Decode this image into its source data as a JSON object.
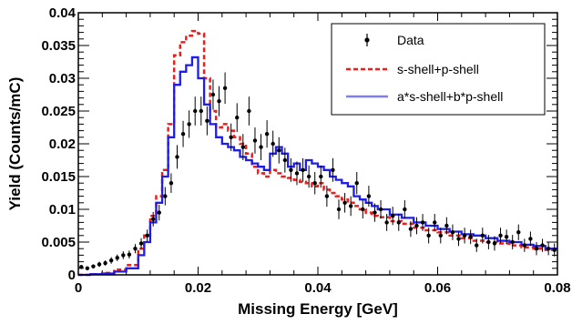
{
  "chart_data": {
    "type": "line",
    "xlabel": "Missing Energy [GeV]",
    "ylabel": "Yield (Counts/mC)",
    "xlim": [
      0,
      0.08
    ],
    "ylim": [
      0,
      0.04
    ],
    "x_ticks": [
      {
        "value": 0,
        "label": "0"
      },
      {
        "value": 0.02,
        "label": "0.02"
      },
      {
        "value": 0.04,
        "label": "0.04"
      },
      {
        "value": 0.06,
        "label": "0.06"
      },
      {
        "value": 0.08,
        "label": "0.08"
      }
    ],
    "y_ticks": [
      {
        "value": 0,
        "label": "0"
      },
      {
        "value": 0.005,
        "label": "0.005"
      },
      {
        "value": 0.01,
        "label": "0.01"
      },
      {
        "value": 0.015,
        "label": "0.015"
      },
      {
        "value": 0.02,
        "label": "0.02"
      },
      {
        "value": 0.025,
        "label": "0.025"
      },
      {
        "value": 0.03,
        "label": "0.03"
      },
      {
        "value": 0.035,
        "label": "0.035"
      },
      {
        "value": 0.04,
        "label": "0.04"
      }
    ],
    "legend_position": "top-right",
    "grid": false,
    "series": [
      {
        "name": "Data",
        "style": "points-with-errorbars",
        "color": "#000000",
        "x": [
          0.0005,
          0.0015,
          0.0025,
          0.0035,
          0.0045,
          0.0055,
          0.0065,
          0.0075,
          0.0085,
          0.0095,
          0.0105,
          0.0115,
          0.0125,
          0.0135,
          0.0145,
          0.0155,
          0.0165,
          0.0175,
          0.0185,
          0.0195,
          0.0205,
          0.0215,
          0.0225,
          0.0235,
          0.0245,
          0.0255,
          0.0265,
          0.0275,
          0.0285,
          0.0295,
          0.0305,
          0.0315,
          0.0325,
          0.0335,
          0.0345,
          0.0355,
          0.0365,
          0.0375,
          0.0385,
          0.0395,
          0.0405,
          0.0415,
          0.0425,
          0.0435,
          0.0445,
          0.0455,
          0.0465,
          0.0475,
          0.0485,
          0.0495,
          0.0505,
          0.0515,
          0.0525,
          0.0535,
          0.0545,
          0.0555,
          0.0565,
          0.0575,
          0.0585,
          0.0595,
          0.0605,
          0.0615,
          0.0625,
          0.0635,
          0.0645,
          0.0655,
          0.0665,
          0.0675,
          0.0685,
          0.0695,
          0.0705,
          0.0715,
          0.0725,
          0.0735,
          0.0745,
          0.0755,
          0.0765,
          0.0775,
          0.0785,
          0.0795
        ],
        "y": [
          0.0012,
          0.001,
          0.0013,
          0.0016,
          0.0018,
          0.0022,
          0.0026,
          0.003,
          0.0031,
          0.004,
          0.0048,
          0.006,
          0.0085,
          0.0095,
          0.012,
          0.014,
          0.018,
          0.0215,
          0.023,
          0.025,
          0.025,
          0.0235,
          0.0275,
          0.0265,
          0.0285,
          0.021,
          0.024,
          0.0195,
          0.025,
          0.0205,
          0.0195,
          0.0215,
          0.02,
          0.019,
          0.0175,
          0.016,
          0.0155,
          0.016,
          0.015,
          0.014,
          0.015,
          0.012,
          0.016,
          0.01,
          0.011,
          0.0105,
          0.014,
          0.01,
          0.012,
          0.0095,
          0.01,
          0.008,
          0.009,
          0.008,
          0.01,
          0.007,
          0.0075,
          0.008,
          0.006,
          0.008,
          0.006,
          0.0075,
          0.0065,
          0.0055,
          0.006,
          0.0058,
          0.0045,
          0.006,
          0.005,
          0.0048,
          0.006,
          0.0058,
          0.005,
          0.0065,
          0.0045,
          0.0055,
          0.004,
          0.0045,
          0.004,
          0.0038
        ],
        "err": [
          0.0003,
          0.0003,
          0.0003,
          0.0004,
          0.0004,
          0.0005,
          0.0005,
          0.0006,
          0.0006,
          0.0007,
          0.0008,
          0.0009,
          0.0011,
          0.0012,
          0.0014,
          0.0015,
          0.0018,
          0.002,
          0.0021,
          0.0022,
          0.0022,
          0.0022,
          0.0023,
          0.0023,
          0.0024,
          0.0021,
          0.0022,
          0.002,
          0.0022,
          0.002,
          0.002,
          0.0021,
          0.002,
          0.002,
          0.0019,
          0.0018,
          0.0018,
          0.0018,
          0.0017,
          0.0017,
          0.0017,
          0.0016,
          0.0018,
          0.0015,
          0.0015,
          0.0015,
          0.0017,
          0.0014,
          0.0016,
          0.0014,
          0.0014,
          0.0013,
          0.0014,
          0.0013,
          0.0014,
          0.0012,
          0.0013,
          0.0013,
          0.0012,
          0.0013,
          0.0012,
          0.0013,
          0.0012,
          0.0011,
          0.0012,
          0.0011,
          0.001,
          0.0012,
          0.0011,
          0.0011,
          0.0012,
          0.0011,
          0.0011,
          0.0012,
          0.001,
          0.0011,
          0.001,
          0.001,
          0.001,
          0.001
        ]
      },
      {
        "name": "s-shell+p-shell",
        "style": "step-dashed",
        "color": "#e8201e",
        "edges": [
          0.0,
          0.002,
          0.004,
          0.006,
          0.008,
          0.01,
          0.011,
          0.012,
          0.013,
          0.014,
          0.015,
          0.016,
          0.017,
          0.018,
          0.019,
          0.02,
          0.021,
          0.022,
          0.023,
          0.024,
          0.025,
          0.026,
          0.027,
          0.028,
          0.029,
          0.03,
          0.031,
          0.032,
          0.033,
          0.034,
          0.035,
          0.036,
          0.037,
          0.038,
          0.039,
          0.04,
          0.041,
          0.042,
          0.043,
          0.044,
          0.045,
          0.046,
          0.047,
          0.048,
          0.049,
          0.05,
          0.052,
          0.054,
          0.056,
          0.058,
          0.06,
          0.062,
          0.064,
          0.066,
          0.068,
          0.07,
          0.072,
          0.074,
          0.076,
          0.078,
          0.08
        ],
        "values": [
          0.0,
          0.0001,
          0.0003,
          0.0008,
          0.0015,
          0.004,
          0.006,
          0.009,
          0.012,
          0.016,
          0.023,
          0.0335,
          0.0355,
          0.0365,
          0.0372,
          0.0368,
          0.03,
          0.025,
          0.0225,
          0.023,
          0.022,
          0.021,
          0.02,
          0.0185,
          0.0165,
          0.0155,
          0.015,
          0.016,
          0.0155,
          0.015,
          0.0148,
          0.0145,
          0.0142,
          0.014,
          0.0135,
          0.014,
          0.013,
          0.0125,
          0.012,
          0.0115,
          0.011,
          0.0105,
          0.01,
          0.0095,
          0.009,
          0.0088,
          0.0082,
          0.0078,
          0.0072,
          0.0068,
          0.0065,
          0.006,
          0.0056,
          0.0052,
          0.005,
          0.0048,
          0.0045,
          0.0042,
          0.004,
          0.0038
        ]
      },
      {
        "name": "a*s-shell+b*p-shell",
        "style": "step-solid",
        "color": "#1e1ee6",
        "edges": [
          0.0,
          0.002,
          0.004,
          0.006,
          0.008,
          0.01,
          0.011,
          0.012,
          0.013,
          0.014,
          0.015,
          0.016,
          0.017,
          0.018,
          0.019,
          0.02,
          0.021,
          0.022,
          0.023,
          0.024,
          0.025,
          0.026,
          0.027,
          0.028,
          0.029,
          0.03,
          0.031,
          0.032,
          0.033,
          0.034,
          0.035,
          0.036,
          0.037,
          0.038,
          0.039,
          0.04,
          0.041,
          0.042,
          0.043,
          0.044,
          0.045,
          0.046,
          0.047,
          0.048,
          0.049,
          0.05,
          0.052,
          0.054,
          0.056,
          0.058,
          0.06,
          0.062,
          0.064,
          0.066,
          0.068,
          0.07,
          0.072,
          0.074,
          0.076,
          0.078,
          0.08
        ],
        "values": [
          0.0,
          0.0001,
          0.0002,
          0.0005,
          0.001,
          0.003,
          0.005,
          0.008,
          0.011,
          0.015,
          0.021,
          0.029,
          0.031,
          0.032,
          0.0332,
          0.03,
          0.026,
          0.023,
          0.021,
          0.02,
          0.0195,
          0.019,
          0.018,
          0.0175,
          0.017,
          0.0165,
          0.016,
          0.0185,
          0.0195,
          0.0185,
          0.0165,
          0.017,
          0.016,
          0.0175,
          0.017,
          0.0165,
          0.016,
          0.015,
          0.0145,
          0.014,
          0.0135,
          0.012,
          0.0115,
          0.011,
          0.0105,
          0.01,
          0.0092,
          0.0087,
          0.008,
          0.0075,
          0.007,
          0.0066,
          0.0062,
          0.006,
          0.0056,
          0.0052,
          0.005,
          0.0046,
          0.0044,
          0.004
        ]
      }
    ]
  }
}
